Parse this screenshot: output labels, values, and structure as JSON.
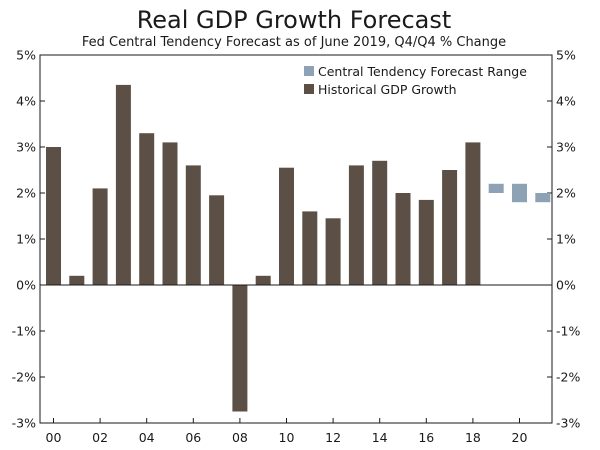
{
  "chart_data": {
    "type": "bar",
    "title": "Real GDP Growth Forecast",
    "subtitle": "Fed Central Tendency Forecast as of June 2019, Q4/Q4 % Change",
    "y_tick_labels": [
      "5%",
      "4%",
      "3%",
      "2%",
      "1%",
      "0%",
      "-1%",
      "-2%",
      "-3%"
    ],
    "y_ticks": [
      5,
      4,
      3,
      2,
      1,
      0,
      -1,
      -2,
      -3
    ],
    "ylim": [
      -3,
      5
    ],
    "x_tick_labels": [
      "00",
      "02",
      "04",
      "06",
      "08",
      "10",
      "12",
      "14",
      "16",
      "18",
      "20"
    ],
    "x_tick_years": [
      2000,
      2002,
      2004,
      2006,
      2008,
      2010,
      2012,
      2014,
      2016,
      2018,
      2020
    ],
    "legend_position": "top-right",
    "series": [
      {
        "name": "Historical GDP Growth",
        "color": "#5c4f45",
        "x": [
          2000,
          2001,
          2002,
          2003,
          2004,
          2005,
          2006,
          2007,
          2008,
          2009,
          2010,
          2011,
          2012,
          2013,
          2014,
          2015,
          2016,
          2017,
          2018
        ],
        "values": [
          3.0,
          0.2,
          2.1,
          4.35,
          3.3,
          3.1,
          2.6,
          1.95,
          -2.75,
          0.2,
          2.55,
          1.6,
          1.45,
          2.6,
          2.7,
          2.0,
          1.85,
          2.5,
          3.1
        ]
      },
      {
        "name": "Central Tendency Forecast Range",
        "color": "#8ea2b5",
        "type": "range",
        "x": [
          2019,
          2020,
          2021
        ],
        "low": [
          2.0,
          1.8,
          1.8
        ],
        "high": [
          2.2,
          2.2,
          2.0
        ]
      }
    ]
  }
}
